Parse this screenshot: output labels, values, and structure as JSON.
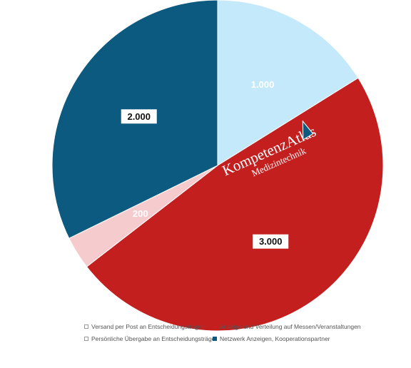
{
  "chart_data": {
    "type": "pie",
    "title": "",
    "start_angle_deg": 0,
    "direction": "clockwise",
    "slices": [
      {
        "label": "Anzeige und Verteilung auf Messen/Veranstaltungen",
        "value": 1000,
        "display": "1.000",
        "color": "#c3e9fb",
        "label_color": "#ffffff",
        "label_boxed": false
      },
      {
        "label": "Versand per Post an Entscheidungsträger",
        "value": 3000,
        "display": "3.000",
        "color": "#c41f1f",
        "label_color": "#111111",
        "label_boxed": true
      },
      {
        "label": "Persönliche Übergabe an Entscheidungsträger",
        "value": 200,
        "display": "200",
        "color": "#f6cbce",
        "label_color": "#ffffff",
        "label_boxed": false
      },
      {
        "label": "Netzwerk Anzeigen, Kooperationspartner",
        "value": 2000,
        "display": "2.000",
        "color": "#0d5a80",
        "label_color": "#111111",
        "label_boxed": true
      }
    ],
    "legend": {
      "position": "bottom",
      "items": [
        {
          "label": "Versand per Post an Entscheidungsträger",
          "color": "#ffffff",
          "border": "#999999"
        },
        {
          "label": "Anzeige und Verteilung auf Messen/Veranstaltungen",
          "color": "#c41f1f",
          "border": "#c41f1f"
        },
        {
          "label": "Persönliche Übergabe an Entscheidungsträger",
          "color": "#ffffff",
          "border": "#999999"
        },
        {
          "label": "Netzwerk Anzeigen, Kooperationspartner",
          "color": "#0d5a80",
          "border": "#0d5a80"
        }
      ]
    }
  },
  "watermark": {
    "line1": "KompetenzAtlas",
    "line2": "Medizintechnik",
    "color": "#ffffff",
    "accent": "#0d5a80"
  }
}
